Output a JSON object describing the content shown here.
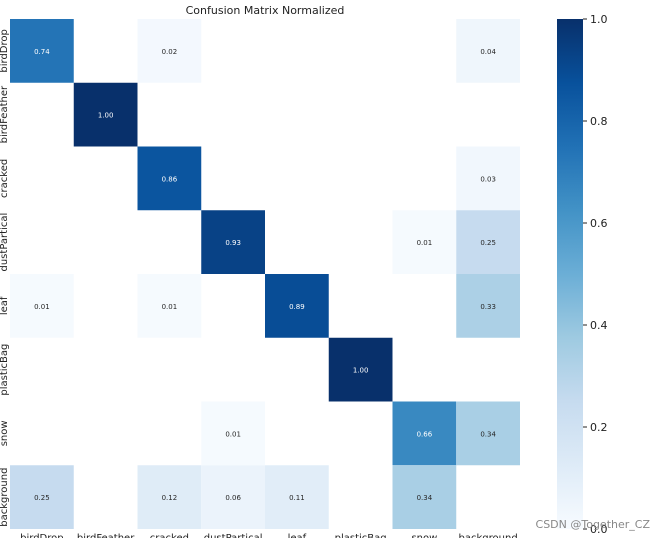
{
  "chart_data": {
    "type": "heatmap",
    "title": "Confusion Matrix Normalized",
    "row_labels": [
      "birdDrop",
      "birdFeather",
      "cracked",
      "dustPartical",
      "leaf",
      "plasticBag",
      "snow",
      "background"
    ],
    "col_labels": [
      "birdDrop",
      "birdFeather",
      "cracked",
      "dustPartical",
      "leaf",
      "plasticBag",
      "snow",
      "background"
    ],
    "values": [
      [
        0.74,
        null,
        0.02,
        null,
        null,
        null,
        null,
        0.04
      ],
      [
        null,
        1.0,
        null,
        null,
        null,
        null,
        null,
        null
      ],
      [
        null,
        null,
        0.86,
        null,
        null,
        null,
        null,
        0.03
      ],
      [
        null,
        null,
        null,
        0.93,
        null,
        null,
        0.01,
        0.25
      ],
      [
        0.01,
        null,
        0.01,
        null,
        0.89,
        null,
        null,
        0.33
      ],
      [
        null,
        null,
        null,
        null,
        null,
        1.0,
        null,
        null
      ],
      [
        null,
        null,
        null,
        0.01,
        null,
        null,
        0.66,
        0.34
      ],
      [
        0.25,
        null,
        0.12,
        0.06,
        0.11,
        null,
        0.34,
        null
      ]
    ],
    "colorbar": {
      "range": [
        0.0,
        1.0
      ],
      "ticks": [
        "0.0",
        "0.2",
        "0.4",
        "0.6",
        "0.8",
        "1.0"
      ],
      "colormap": "Blues"
    }
  },
  "watermark": "CSDN @Together_CZ"
}
